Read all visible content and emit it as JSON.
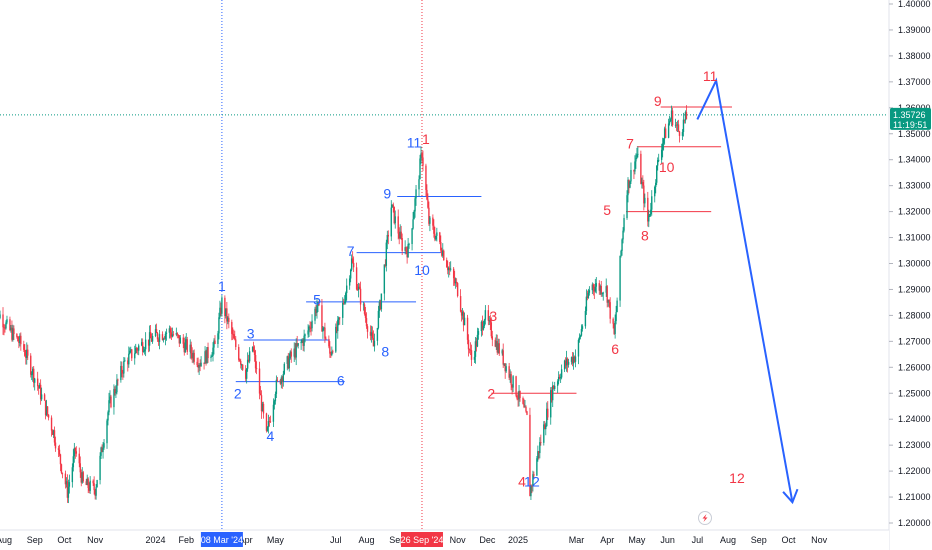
{
  "chart_data": {
    "type": "candlestick",
    "y_range": [
      1.2,
      1.4
    ],
    "y_ticks": [
      "1.40000",
      "1.39000",
      "1.38000",
      "1.37000",
      "1.36000",
      "1.35000",
      "1.34000",
      "1.33000",
      "1.32000",
      "1.31000",
      "1.30000",
      "1.29000",
      "1.28000",
      "1.27000",
      "1.26000",
      "1.25000",
      "1.24000",
      "1.23000",
      "1.22000",
      "1.21000",
      "1.20000"
    ],
    "x_axis_labels": [
      {
        "text": "Aug",
        "x": "2023-08-01"
      },
      {
        "text": "Sep",
        "x": "2023-09-01"
      },
      {
        "text": "Oct",
        "x": "2023-10-01"
      },
      {
        "text": "Nov",
        "x": "2023-11-01"
      },
      {
        "text": "2024",
        "x": "2024-01-01"
      },
      {
        "text": "Feb",
        "x": "2024-02-01"
      },
      {
        "text": "Apr",
        "x": "2024-04-01"
      },
      {
        "text": "May",
        "x": "2024-05-01"
      },
      {
        "text": "Jul",
        "x": "2024-07-01"
      },
      {
        "text": "Aug",
        "x": "2024-08-01"
      },
      {
        "text": "Sep",
        "x": "2024-09-01"
      },
      {
        "text": "Nov",
        "x": "2024-11-01"
      },
      {
        "text": "Dec",
        "x": "2024-12-01"
      },
      {
        "text": "2025",
        "x": "2025-01-01"
      },
      {
        "text": "Mar",
        "x": "2025-03-01"
      },
      {
        "text": "Apr",
        "x": "2025-04-01"
      },
      {
        "text": "May",
        "x": "2025-05-01"
      },
      {
        "text": "Jun",
        "x": "2025-06-01"
      },
      {
        "text": "Jul",
        "x": "2025-07-01"
      },
      {
        "text": "Aug",
        "x": "2025-08-01"
      },
      {
        "text": "Sep",
        "x": "2025-09-01"
      },
      {
        "text": "Oct",
        "x": "2025-10-01"
      },
      {
        "text": "Nov",
        "x": "2025-11-01"
      }
    ],
    "highlighted_dates": [
      {
        "text": "08 Mar '24",
        "x": "2024-03-08",
        "color": "#2962ff"
      },
      {
        "text": "26 Sep '24",
        "x": "2024-09-26",
        "color": "#f23645"
      }
    ],
    "price_label": {
      "price": 1.35726,
      "text": "1.35726",
      "countdown": "11:19:51",
      "color": "#089981"
    },
    "price_path": [
      [
        "2023-07-20",
        1.285
      ],
      [
        "2023-08-05",
        1.275
      ],
      [
        "2023-08-20",
        1.268
      ],
      [
        "2023-09-05",
        1.252
      ],
      [
        "2023-09-20",
        1.235
      ],
      [
        "2023-10-04",
        1.212
      ],
      [
        "2023-10-12",
        1.228
      ],
      [
        "2023-10-20",
        1.215
      ],
      [
        "2023-11-01",
        1.213
      ],
      [
        "2023-11-15",
        1.245
      ],
      [
        "2023-12-01",
        1.262
      ],
      [
        "2023-12-15",
        1.268
      ],
      [
        "2024-01-01",
        1.272
      ],
      [
        "2024-01-15",
        1.274
      ],
      [
        "2024-02-01",
        1.268
      ],
      [
        "2024-02-15",
        1.262
      ],
      [
        "2024-03-01",
        1.268
      ],
      [
        "2024-03-08",
        1.285
      ],
      [
        "2024-03-20",
        1.27
      ],
      [
        "2024-04-01",
        1.258
      ],
      [
        "2024-04-08",
        1.268
      ],
      [
        "2024-04-22",
        1.233
      ],
      [
        "2024-05-01",
        1.252
      ],
      [
        "2024-05-15",
        1.263
      ],
      [
        "2024-06-01",
        1.272
      ],
      [
        "2024-06-12",
        1.284
      ],
      [
        "2024-06-25",
        1.265
      ],
      [
        "2024-07-05",
        1.278
      ],
      [
        "2024-07-17",
        1.301
      ],
      [
        "2024-07-25",
        1.288
      ],
      [
        "2024-08-08",
        1.268
      ],
      [
        "2024-08-15",
        1.285
      ],
      [
        "2024-08-26",
        1.322
      ],
      [
        "2024-09-06",
        1.307
      ],
      [
        "2024-09-12",
        1.305
      ],
      [
        "2024-09-26",
        1.343
      ],
      [
        "2024-10-03",
        1.316
      ],
      [
        "2024-10-15",
        1.307
      ],
      [
        "2024-10-25",
        1.296
      ],
      [
        "2024-11-01",
        1.29
      ],
      [
        "2024-11-15",
        1.263
      ],
      [
        "2024-11-28",
        1.28
      ],
      [
        "2024-12-15",
        1.265
      ],
      [
        "2024-12-31",
        1.25
      ],
      [
        "2025-01-10",
        1.24
      ],
      [
        "2025-01-13",
        1.212
      ],
      [
        "2025-01-20",
        1.225
      ],
      [
        "2025-02-05",
        1.252
      ],
      [
        "2025-02-15",
        1.26
      ],
      [
        "2025-03-01",
        1.265
      ],
      [
        "2025-03-15",
        1.292
      ],
      [
        "2025-03-31",
        1.29
      ],
      [
        "2025-04-08",
        1.272
      ],
      [
        "2025-04-20",
        1.328
      ],
      [
        "2025-05-01",
        1.342
      ],
      [
        "2025-05-12",
        1.316
      ],
      [
        "2025-05-25",
        1.345
      ],
      [
        "2025-06-05",
        1.357
      ],
      [
        "2025-06-12",
        1.351
      ],
      [
        "2025-06-20",
        1.356
      ]
    ],
    "horizontal_levels": [
      {
        "price": 1.2705,
        "from": "2024-03-30",
        "to": "2024-06-25",
        "color": "#2962ff"
      },
      {
        "price": 1.2545,
        "from": "2024-03-22",
        "to": "2024-07-10",
        "color": "#2962ff"
      },
      {
        "price": 1.2852,
        "from": "2024-06-01",
        "to": "2024-09-20",
        "color": "#2962ff"
      },
      {
        "price": 1.3042,
        "from": "2024-07-22",
        "to": "2024-10-15",
        "color": "#2962ff"
      },
      {
        "price": 1.3258,
        "from": "2024-09-01",
        "to": "2024-11-25",
        "color": "#2962ff"
      },
      {
        "price": 1.25,
        "from": "2024-12-05",
        "to": "2025-03-01",
        "color": "#f23645"
      },
      {
        "price": 1.32,
        "from": "2025-04-20",
        "to": "2025-07-15",
        "color": "#f23645"
      },
      {
        "price": 1.345,
        "from": "2025-05-01",
        "to": "2025-07-25",
        "color": "#f23645"
      },
      {
        "price": 1.3603,
        "from": "2025-05-25",
        "to": "2025-08-05",
        "color": "#f23645"
      }
    ],
    "projection_line": {
      "points": [
        [
          "2025-07-01",
          1.3555
        ],
        [
          "2025-07-20",
          1.3705
        ],
        [
          "2025-10-05",
          1.208
        ]
      ],
      "color": "#2962ff"
    },
    "arrowhead": {
      "date": "2025-10-05",
      "price": 1.208
    },
    "wave_labels": [
      {
        "text": "1",
        "x": "2024-03-08",
        "y": 1.2908,
        "color": "#2962ff"
      },
      {
        "text": "2",
        "x": "2024-03-24",
        "y": 1.2495,
        "color": "#2962ff"
      },
      {
        "text": "3",
        "x": "2024-04-06",
        "y": 1.2725,
        "color": "#2962ff"
      },
      {
        "text": "4",
        "x": "2024-04-26",
        "y": 1.233,
        "color": "#2962ff"
      },
      {
        "text": "5",
        "x": "2024-06-12",
        "y": 1.2856,
        "color": "#2962ff"
      },
      {
        "text": "6",
        "x": "2024-07-06",
        "y": 1.2545,
        "color": "#2962ff"
      },
      {
        "text": "7",
        "x": "2024-07-16",
        "y": 1.3044,
        "color": "#2962ff"
      },
      {
        "text": "8",
        "x": "2024-08-20",
        "y": 1.2655,
        "color": "#2962ff"
      },
      {
        "text": "9",
        "x": "2024-08-22",
        "y": 1.3265,
        "color": "#2962ff"
      },
      {
        "text": "10",
        "x": "2024-09-26",
        "y": 1.297,
        "color": "#2962ff"
      },
      {
        "text": "11",
        "x": "2024-09-18",
        "y": 1.3462,
        "color": "#2962ff"
      },
      {
        "text": "1",
        "x": "2024-09-30",
        "y": 1.3475,
        "color": "#f23645"
      },
      {
        "text": "2",
        "x": "2024-12-05",
        "y": 1.2495,
        "color": "#f23645"
      },
      {
        "text": "3",
        "x": "2024-12-07",
        "y": 1.2792,
        "color": "#f23645"
      },
      {
        "text": "4",
        "x": "2025-01-05",
        "y": 1.2155,
        "color": "#f23645"
      },
      {
        "text": "1",
        "x": "2025-01-11",
        "y": 1.2155,
        "color": "#2962ff"
      },
      {
        "text": "2",
        "x": "2025-01-19",
        "y": 1.2155,
        "color": "#2962ff"
      },
      {
        "text": "5",
        "x": "2025-04-01",
        "y": 1.3202,
        "color": "#f23645"
      },
      {
        "text": "6",
        "x": "2025-04-09",
        "y": 1.2665,
        "color": "#f23645"
      },
      {
        "text": "7",
        "x": "2025-04-24",
        "y": 1.3458,
        "color": "#f23645"
      },
      {
        "text": "8",
        "x": "2025-05-09",
        "y": 1.3102,
        "color": "#f23645"
      },
      {
        "text": "9",
        "x": "2025-05-22",
        "y": 1.3622,
        "color": "#f23645"
      },
      {
        "text": "10",
        "x": "2025-05-31",
        "y": 1.3366,
        "color": "#f23645"
      },
      {
        "text": "11",
        "x": "2025-07-14",
        "y": 1.3718,
        "color": "#f23645"
      },
      {
        "text": "12",
        "x": "2025-08-10",
        "y": 1.2168,
        "color": "#f23645"
      }
    ]
  },
  "colors": {
    "up": "#089981",
    "down": "#f23645",
    "blue": "#2962ff",
    "red": "#f23645",
    "axis_text": "#131722",
    "grid_border": "#e0e3eb"
  },
  "icons": {
    "event_marker": "lightning-bolt-icon"
  }
}
